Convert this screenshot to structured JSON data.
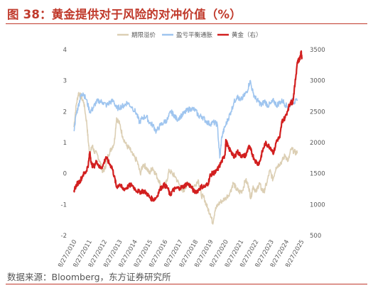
{
  "title": "图 38：黄金提供对于风险的对冲价值（%）",
  "source": "数据来源：Bloomberg，东方证券研究所",
  "chart_data": {
    "type": "line",
    "title": "",
    "x": [
      "8/27/2010",
      "8/27/2011",
      "8/27/2012",
      "8/27/2013",
      "8/27/2014",
      "8/27/2015",
      "8/27/2016",
      "8/27/2017",
      "8/27/2018",
      "8/27/2019",
      "8/27/2020",
      "8/27/2021",
      "8/27/2022",
      "8/27/2023",
      "8/27/2024",
      "8/27/2025"
    ],
    "x_tick_labels": [
      "8/27/2010",
      "8/27/2011",
      "8/27/2012",
      "8/27/2013",
      "8/27/2014",
      "8/27/2015",
      "8/27/2016",
      "8/27/2017",
      "8/27/2018",
      "8/27/2019",
      "8/27/2020",
      "8/27/2021",
      "8/27/2022",
      "8/27/2023",
      "8/27/2024",
      "8/27/2025"
    ],
    "y_left_ticks": [
      "4",
      "3",
      "2",
      "1",
      "0",
      "-1",
      "-2"
    ],
    "y_right_ticks": [
      "3500",
      "3000",
      "2500",
      "2000",
      "1500",
      "1000",
      "500"
    ],
    "ylim_left": [
      -2,
      4
    ],
    "ylim_right": [
      500,
      3500
    ],
    "legend_position": "top",
    "grid": false,
    "series": [
      {
        "name": "期限溢价",
        "axis": "left",
        "color": "#dccfb4",
        "points": [
          [
            2010.65,
            1.5
          ],
          [
            2010.8,
            2.2
          ],
          [
            2010.95,
            2.6
          ],
          [
            2011.1,
            2.5
          ],
          [
            2011.3,
            2.3
          ],
          [
            2011.5,
            1.6
          ],
          [
            2011.6,
            1.0
          ],
          [
            2011.7,
            0.6
          ],
          [
            2011.85,
            0.9
          ],
          [
            2012.0,
            0.7
          ],
          [
            2012.2,
            0.6
          ],
          [
            2012.4,
            0.3
          ],
          [
            2012.55,
            0.05
          ],
          [
            2012.7,
            0.2
          ],
          [
            2012.9,
            0.6
          ],
          [
            2013.1,
            0.8
          ],
          [
            2013.3,
            1.0
          ],
          [
            2013.45,
            1.8
          ],
          [
            2013.65,
            1.6
          ],
          [
            2013.85,
            1.2
          ],
          [
            2014.1,
            0.9
          ],
          [
            2014.3,
            0.8
          ],
          [
            2014.5,
            0.6
          ],
          [
            2014.8,
            0.4
          ],
          [
            2015.0,
            0.0
          ],
          [
            2015.2,
            0.3
          ],
          [
            2015.4,
            0.2
          ],
          [
            2015.6,
            0.0
          ],
          [
            2015.8,
            0.2
          ],
          [
            2016.0,
            0.0
          ],
          [
            2016.2,
            -0.2
          ],
          [
            2016.45,
            -0.5
          ],
          [
            2016.7,
            -0.3
          ],
          [
            2016.9,
            0.1
          ],
          [
            2017.1,
            0.0
          ],
          [
            2017.3,
            -0.1
          ],
          [
            2017.6,
            -0.4
          ],
          [
            2017.8,
            -0.6
          ],
          [
            2018.0,
            -0.4
          ],
          [
            2018.2,
            -0.3
          ],
          [
            2018.5,
            -0.45
          ],
          [
            2018.8,
            -0.2
          ],
          [
            2019.0,
            -0.7
          ],
          [
            2019.2,
            -0.8
          ],
          [
            2019.4,
            -1.1
          ],
          [
            2019.6,
            -1.3
          ],
          [
            2019.75,
            -1.6
          ],
          [
            2019.9,
            -1.2
          ],
          [
            2020.1,
            -1.0
          ],
          [
            2020.3,
            -0.9
          ],
          [
            2020.6,
            -0.8
          ],
          [
            2020.9,
            -0.6
          ],
          [
            2021.1,
            -0.3
          ],
          [
            2021.3,
            -0.5
          ],
          [
            2021.5,
            -0.6
          ],
          [
            2021.7,
            -0.55
          ],
          [
            2021.9,
            -0.2
          ],
          [
            2022.1,
            -0.4
          ],
          [
            2022.25,
            -0.8
          ],
          [
            2022.4,
            -0.4
          ],
          [
            2022.6,
            -0.6
          ],
          [
            2022.8,
            -0.3
          ],
          [
            2022.95,
            -0.5
          ],
          [
            2023.1,
            -0.6
          ],
          [
            2023.3,
            -0.3
          ],
          [
            2023.5,
            0.1
          ],
          [
            2023.7,
            -0.2
          ],
          [
            2023.9,
            0.2
          ],
          [
            2024.1,
            0.3
          ],
          [
            2024.3,
            0.4
          ],
          [
            2024.5,
            0.6
          ],
          [
            2024.7,
            0.4
          ],
          [
            2024.9,
            0.8
          ],
          [
            2025.1,
            0.7
          ],
          [
            2025.3,
            0.65
          ]
        ]
      },
      {
        "name": "盈亏平衡通胀",
        "axis": "left",
        "color": "#9fc5ef",
        "points": [
          [
            2010.65,
            1.4
          ],
          [
            2010.8,
            1.9
          ],
          [
            2010.95,
            2.2
          ],
          [
            2011.1,
            2.5
          ],
          [
            2011.25,
            2.6
          ],
          [
            2011.45,
            2.4
          ],
          [
            2011.7,
            2.0
          ],
          [
            2011.9,
            2.1
          ],
          [
            2012.1,
            2.3
          ],
          [
            2012.3,
            2.35
          ],
          [
            2012.55,
            2.3
          ],
          [
            2012.8,
            2.2
          ],
          [
            2013.0,
            2.3
          ],
          [
            2013.25,
            2.35
          ],
          [
            2013.45,
            2.1
          ],
          [
            2013.7,
            2.15
          ],
          [
            2013.95,
            2.2
          ],
          [
            2014.15,
            2.3
          ],
          [
            2014.45,
            2.15
          ],
          [
            2014.75,
            1.95
          ],
          [
            2014.95,
            1.65
          ],
          [
            2015.15,
            1.8
          ],
          [
            2015.4,
            1.85
          ],
          [
            2015.6,
            1.65
          ],
          [
            2015.85,
            1.55
          ],
          [
            2016.05,
            1.35
          ],
          [
            2016.3,
            1.55
          ],
          [
            2016.55,
            1.65
          ],
          [
            2016.8,
            1.75
          ],
          [
            2017.0,
            2.0
          ],
          [
            2017.2,
            1.9
          ],
          [
            2017.4,
            1.75
          ],
          [
            2017.65,
            1.85
          ],
          [
            2017.9,
            1.95
          ],
          [
            2018.1,
            2.05
          ],
          [
            2018.35,
            2.1
          ],
          [
            2018.6,
            2.05
          ],
          [
            2018.85,
            1.85
          ],
          [
            2019.05,
            1.85
          ],
          [
            2019.3,
            1.7
          ],
          [
            2019.55,
            1.6
          ],
          [
            2019.8,
            1.65
          ],
          [
            2020.05,
            1.6
          ],
          [
            2020.22,
            0.5
          ],
          [
            2020.35,
            1.2
          ],
          [
            2020.55,
            1.5
          ],
          [
            2020.75,
            1.75
          ],
          [
            2020.95,
            2.0
          ],
          [
            2021.15,
            2.3
          ],
          [
            2021.35,
            2.5
          ],
          [
            2021.55,
            2.35
          ],
          [
            2021.8,
            2.5
          ],
          [
            2022.0,
            2.65
          ],
          [
            2022.2,
            3.0
          ],
          [
            2022.4,
            2.6
          ],
          [
            2022.6,
            2.4
          ],
          [
            2022.8,
            2.3
          ],
          [
            2022.95,
            2.2
          ],
          [
            2023.15,
            2.35
          ],
          [
            2023.35,
            2.2
          ],
          [
            2023.55,
            2.25
          ],
          [
            2023.75,
            2.35
          ],
          [
            2023.95,
            2.2
          ],
          [
            2024.15,
            2.3
          ],
          [
            2024.35,
            2.35
          ],
          [
            2024.55,
            2.2
          ],
          [
            2024.75,
            2.15
          ],
          [
            2024.95,
            2.35
          ],
          [
            2025.1,
            2.3
          ],
          [
            2025.3,
            2.35
          ]
        ]
      },
      {
        "name": "黄金（右）",
        "axis": "right",
        "color": "#d21f1f",
        "points": [
          [
            2010.65,
            1230
          ],
          [
            2010.85,
            1330
          ],
          [
            2011.05,
            1380
          ],
          [
            2011.25,
            1480
          ],
          [
            2011.45,
            1530
          ],
          [
            2011.6,
            1650
          ],
          [
            2011.7,
            1850
          ],
          [
            2011.8,
            1650
          ],
          [
            2011.95,
            1610
          ],
          [
            2012.15,
            1700
          ],
          [
            2012.35,
            1590
          ],
          [
            2012.55,
            1620
          ],
          [
            2012.75,
            1770
          ],
          [
            2012.95,
            1670
          ],
          [
            2013.15,
            1600
          ],
          [
            2013.3,
            1450
          ],
          [
            2013.45,
            1280
          ],
          [
            2013.65,
            1330
          ],
          [
            2013.85,
            1250
          ],
          [
            2014.05,
            1260
          ],
          [
            2014.25,
            1300
          ],
          [
            2014.45,
            1320
          ],
          [
            2014.7,
            1240
          ],
          [
            2014.95,
            1200
          ],
          [
            2015.15,
            1220
          ],
          [
            2015.4,
            1190
          ],
          [
            2015.6,
            1120
          ],
          [
            2015.85,
            1080
          ],
          [
            2016.05,
            1110
          ],
          [
            2016.3,
            1250
          ],
          [
            2016.55,
            1320
          ],
          [
            2016.8,
            1270
          ],
          [
            2016.95,
            1150
          ],
          [
            2017.15,
            1230
          ],
          [
            2017.35,
            1260
          ],
          [
            2017.6,
            1270
          ],
          [
            2017.85,
            1290
          ],
          [
            2018.05,
            1340
          ],
          [
            2018.3,
            1300
          ],
          [
            2018.55,
            1200
          ],
          [
            2018.8,
            1230
          ],
          [
            2019.0,
            1290
          ],
          [
            2019.25,
            1290
          ],
          [
            2019.45,
            1340
          ],
          [
            2019.6,
            1480
          ],
          [
            2019.8,
            1510
          ],
          [
            2019.95,
            1520
          ],
          [
            2020.15,
            1600
          ],
          [
            2020.35,
            1700
          ],
          [
            2020.55,
            1800
          ],
          [
            2020.62,
            2040
          ],
          [
            2020.8,
            1900
          ],
          [
            2020.95,
            1870
          ],
          [
            2021.15,
            1750
          ],
          [
            2021.35,
            1860
          ],
          [
            2021.55,
            1800
          ],
          [
            2021.75,
            1780
          ],
          [
            2021.95,
            1800
          ],
          [
            2022.1,
            1940
          ],
          [
            2022.25,
            1880
          ],
          [
            2022.45,
            1750
          ],
          [
            2022.7,
            1650
          ],
          [
            2022.85,
            1700
          ],
          [
            2023.0,
            1850
          ],
          [
            2023.2,
            1990
          ],
          [
            2023.35,
            1960
          ],
          [
            2023.55,
            1920
          ],
          [
            2023.75,
            1830
          ],
          [
            2023.95,
            2040
          ],
          [
            2024.15,
            2080
          ],
          [
            2024.3,
            2350
          ],
          [
            2024.5,
            2400
          ],
          [
            2024.7,
            2550
          ],
          [
            2024.85,
            2650
          ],
          [
            2025.0,
            2650
          ],
          [
            2025.15,
            2950
          ],
          [
            2025.3,
            3300
          ],
          [
            2025.45,
            3350
          ],
          [
            2025.55,
            3450
          ],
          [
            2025.6,
            3380
          ]
        ]
      }
    ]
  }
}
